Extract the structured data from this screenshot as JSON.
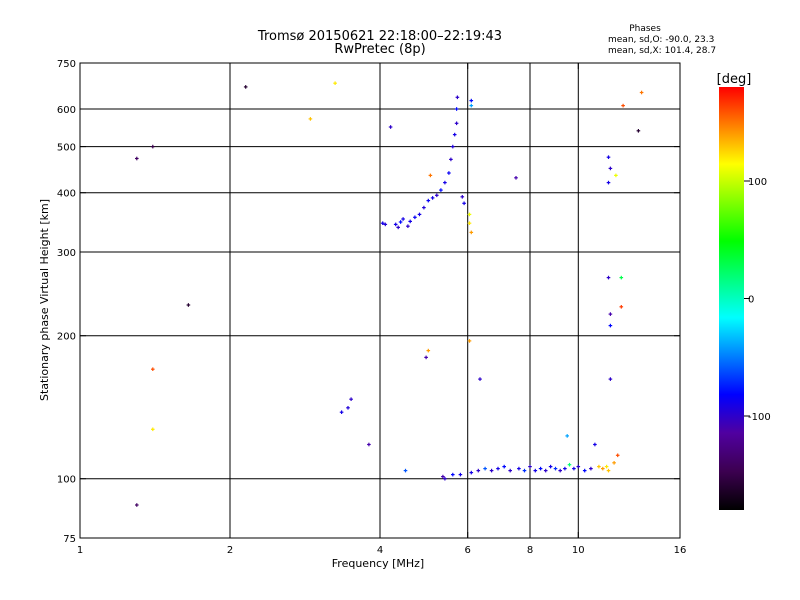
{
  "chart_data": {
    "type": "scatter",
    "title": "Tromsø 20150621 22:18:00–22:19:43",
    "subtitle": "RwPretec (8p)",
    "xlabel": "Frequency [MHz]",
    "ylabel": "Stationary phase Virtual Height [km]",
    "x_scale": "log",
    "y_scale": "log",
    "xlim": [
      1,
      16
    ],
    "ylim": [
      75,
      750
    ],
    "x_ticks": [
      1,
      2,
      4,
      6,
      8,
      10,
      16
    ],
    "x_tick_labels": [
      "1",
      "2",
      "4",
      "6",
      "8",
      "10",
      "16"
    ],
    "x_gridlines": [
      2,
      4,
      6,
      8,
      10
    ],
    "y_ticks": [
      75,
      100,
      200,
      300,
      400,
      500,
      600,
      750
    ],
    "y_tick_labels": [
      "75",
      "100",
      "200",
      "300",
      "400",
      "500",
      "600",
      "750"
    ],
    "y_gridlines": [
      100,
      200,
      300,
      400,
      500,
      600
    ],
    "grid": true,
    "stats": {
      "heading": "Phases",
      "line_o": "mean, sd,O: -90.0, 23.3",
      "line_x": "mean, sd,X: 101.4, 28.7"
    },
    "colorbar": {
      "unit": "[deg]",
      "range": [
        -180,
        180
      ],
      "ticks": [
        100,
        0,
        -100
      ],
      "tick_labels": [
        "100",
        "0",
        "-100"
      ],
      "colormap": [
        "#000000",
        "#3c0050",
        "#5000a0",
        "#0000ff",
        "#0080ff",
        "#00ffff",
        "#00ff80",
        "#00ff00",
        "#80ff00",
        "#ffff00",
        "#ff8000",
        "#ff0000"
      ]
    },
    "points": [
      {
        "x": 1.3,
        "y": 88,
        "phase": -140
      },
      {
        "x": 1.3,
        "y": 472,
        "phase": -140
      },
      {
        "x": 1.4,
        "y": 500,
        "phase": -150
      },
      {
        "x": 1.4,
        "y": 170,
        "phase": 160
      },
      {
        "x": 1.4,
        "y": 127,
        "phase": 120
      },
      {
        "x": 1.65,
        "y": 232,
        "phase": -160
      },
      {
        "x": 2.15,
        "y": 668,
        "phase": -160
      },
      {
        "x": 2.9,
        "y": 572,
        "phase": 130
      },
      {
        "x": 3.25,
        "y": 680,
        "phase": 120
      },
      {
        "x": 3.35,
        "y": 138,
        "phase": -90
      },
      {
        "x": 3.45,
        "y": 141,
        "phase": -95
      },
      {
        "x": 3.5,
        "y": 147,
        "phase": -100
      },
      {
        "x": 3.8,
        "y": 118,
        "phase": -110
      },
      {
        "x": 4.05,
        "y": 345,
        "phase": -90
      },
      {
        "x": 4.1,
        "y": 343,
        "phase": -95
      },
      {
        "x": 4.2,
        "y": 550,
        "phase": -100
      },
      {
        "x": 4.3,
        "y": 343,
        "phase": -90
      },
      {
        "x": 4.35,
        "y": 338,
        "phase": -100
      },
      {
        "x": 4.4,
        "y": 347,
        "phase": -80
      },
      {
        "x": 4.45,
        "y": 352,
        "phase": -90
      },
      {
        "x": 4.5,
        "y": 104,
        "phase": -60
      },
      {
        "x": 4.55,
        "y": 340,
        "phase": -100
      },
      {
        "x": 4.6,
        "y": 348,
        "phase": -90
      },
      {
        "x": 4.7,
        "y": 355,
        "phase": -85
      },
      {
        "x": 4.8,
        "y": 360,
        "phase": -90
      },
      {
        "x": 4.9,
        "y": 372,
        "phase": -95
      },
      {
        "x": 4.95,
        "y": 180,
        "phase": -110
      },
      {
        "x": 5.0,
        "y": 186,
        "phase": 140
      },
      {
        "x": 5.0,
        "y": 385,
        "phase": -85
      },
      {
        "x": 5.05,
        "y": 435,
        "phase": 150
      },
      {
        "x": 5.1,
        "y": 390,
        "phase": -90
      },
      {
        "x": 5.2,
        "y": 395,
        "phase": -100
      },
      {
        "x": 5.3,
        "y": 405,
        "phase": -80
      },
      {
        "x": 5.35,
        "y": 101,
        "phase": -110
      },
      {
        "x": 5.4,
        "y": 100,
        "phase": -100
      },
      {
        "x": 5.4,
        "y": 420,
        "phase": -90
      },
      {
        "x": 5.5,
        "y": 440,
        "phase": -85
      },
      {
        "x": 5.55,
        "y": 470,
        "phase": -100
      },
      {
        "x": 5.6,
        "y": 500,
        "phase": -95
      },
      {
        "x": 5.65,
        "y": 530,
        "phase": -90
      },
      {
        "x": 5.7,
        "y": 560,
        "phase": -100
      },
      {
        "x": 5.7,
        "y": 600,
        "phase": -80
      },
      {
        "x": 5.72,
        "y": 635,
        "phase": -100
      },
      {
        "x": 5.6,
        "y": 102,
        "phase": -80
      },
      {
        "x": 5.8,
        "y": 102,
        "phase": -90
      },
      {
        "x": 5.85,
        "y": 392,
        "phase": -100
      },
      {
        "x": 5.9,
        "y": 380,
        "phase": -90
      },
      {
        "x": 6.05,
        "y": 360,
        "phase": 110
      },
      {
        "x": 6.05,
        "y": 345,
        "phase": 120
      },
      {
        "x": 6.1,
        "y": 610,
        "phase": -40
      },
      {
        "x": 6.1,
        "y": 625,
        "phase": -80
      },
      {
        "x": 6.1,
        "y": 330,
        "phase": 140
      },
      {
        "x": 6.05,
        "y": 195,
        "phase": 140
      },
      {
        "x": 6.35,
        "y": 162,
        "phase": -100
      },
      {
        "x": 6.1,
        "y": 103,
        "phase": -90
      },
      {
        "x": 6.3,
        "y": 104,
        "phase": -100
      },
      {
        "x": 6.5,
        "y": 105,
        "phase": -60
      },
      {
        "x": 6.7,
        "y": 104,
        "phase": -100
      },
      {
        "x": 6.9,
        "y": 105,
        "phase": -90
      },
      {
        "x": 7.1,
        "y": 106,
        "phase": -80
      },
      {
        "x": 7.3,
        "y": 104,
        "phase": -100
      },
      {
        "x": 7.5,
        "y": 430,
        "phase": -110
      },
      {
        "x": 7.6,
        "y": 105,
        "phase": -90
      },
      {
        "x": 7.8,
        "y": 104,
        "phase": -70
      },
      {
        "x": 8.0,
        "y": 106,
        "phase": -100
      },
      {
        "x": 8.2,
        "y": 104,
        "phase": -90
      },
      {
        "x": 8.4,
        "y": 105,
        "phase": -80
      },
      {
        "x": 8.6,
        "y": 104,
        "phase": -100
      },
      {
        "x": 8.8,
        "y": 106,
        "phase": -90
      },
      {
        "x": 9.0,
        "y": 105,
        "phase": -70
      },
      {
        "x": 9.2,
        "y": 104,
        "phase": -100
      },
      {
        "x": 9.4,
        "y": 105,
        "phase": -90
      },
      {
        "x": 9.5,
        "y": 123,
        "phase": -40
      },
      {
        "x": 9.6,
        "y": 107,
        "phase": 20
      },
      {
        "x": 9.8,
        "y": 105,
        "phase": -90
      },
      {
        "x": 10.0,
        "y": 106,
        "phase": -100
      },
      {
        "x": 10.3,
        "y": 104,
        "phase": -80
      },
      {
        "x": 10.6,
        "y": 105,
        "phase": -100
      },
      {
        "x": 10.8,
        "y": 118,
        "phase": -90
      },
      {
        "x": 11.0,
        "y": 106,
        "phase": 130
      },
      {
        "x": 11.2,
        "y": 105,
        "phase": 140
      },
      {
        "x": 11.4,
        "y": 106,
        "phase": 120
      },
      {
        "x": 11.5,
        "y": 104,
        "phase": 130
      },
      {
        "x": 11.5,
        "y": 475,
        "phase": -90
      },
      {
        "x": 11.6,
        "y": 450,
        "phase": -100
      },
      {
        "x": 11.5,
        "y": 420,
        "phase": -90
      },
      {
        "x": 11.5,
        "y": 265,
        "phase": -100
      },
      {
        "x": 11.6,
        "y": 222,
        "phase": -110
      },
      {
        "x": 11.6,
        "y": 210,
        "phase": -80
      },
      {
        "x": 11.6,
        "y": 162,
        "phase": -100
      },
      {
        "x": 11.8,
        "y": 108,
        "phase": 140
      },
      {
        "x": 12.0,
        "y": 112,
        "phase": 160
      },
      {
        "x": 11.9,
        "y": 435,
        "phase": 110
      },
      {
        "x": 12.2,
        "y": 265,
        "phase": 30
      },
      {
        "x": 12.2,
        "y": 230,
        "phase": 165
      },
      {
        "x": 12.3,
        "y": 610,
        "phase": 160
      },
      {
        "x": 13.2,
        "y": 540,
        "phase": -160
      },
      {
        "x": 13.4,
        "y": 650,
        "phase": 150
      }
    ]
  }
}
